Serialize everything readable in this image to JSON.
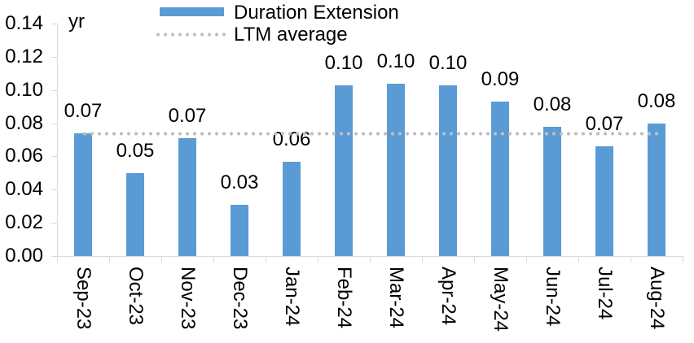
{
  "chart_data": {
    "type": "bar",
    "title": "",
    "categories": [
      "Sep-23",
      "Oct-23",
      "Nov-23",
      "Dec-23",
      "Jan-24",
      "Feb-24",
      "Mar-24",
      "Apr-24",
      "May-24",
      "Jun-24",
      "Jul-24",
      "Aug-24"
    ],
    "series": [
      {
        "name": "Duration Extension",
        "values": [
          0.074,
          0.05,
          0.071,
          0.031,
          0.057,
          0.103,
          0.104,
          0.103,
          0.093,
          0.078,
          0.066,
          0.08
        ],
        "data_labels": [
          "0.07",
          "0.05",
          "0.07",
          "0.03",
          "0.06",
          "0.10",
          "0.10",
          "0.10",
          "0.09",
          "0.08",
          "0.07",
          "0.08"
        ],
        "color": "#5B9BD5"
      }
    ],
    "ltm": {
      "name": "LTM average",
      "value": 0.074,
      "color": "#BFBFBF",
      "line_style": "dotted",
      "spans": "first-category-center-to-last-category-center"
    },
    "y_axis": {
      "unit": "yr",
      "min": 0.0,
      "max": 0.14,
      "step": 0.02,
      "tick_labels": [
        "0.00",
        "0.02",
        "0.04",
        "0.06",
        "0.08",
        "0.10",
        "0.12",
        "0.14"
      ]
    },
    "x_axis": {
      "label_rotation_deg": 90
    },
    "legend": {
      "position": "top-center",
      "entries": [
        {
          "label": "Duration Extension",
          "swatch": "bar",
          "color": "#5B9BD5"
        },
        {
          "label": "LTM average",
          "swatch": "dotted-line",
          "color": "#BFBFBF"
        }
      ]
    },
    "grid": "off",
    "axis_color": "#D9D9D9",
    "text_color": "#000000"
  }
}
